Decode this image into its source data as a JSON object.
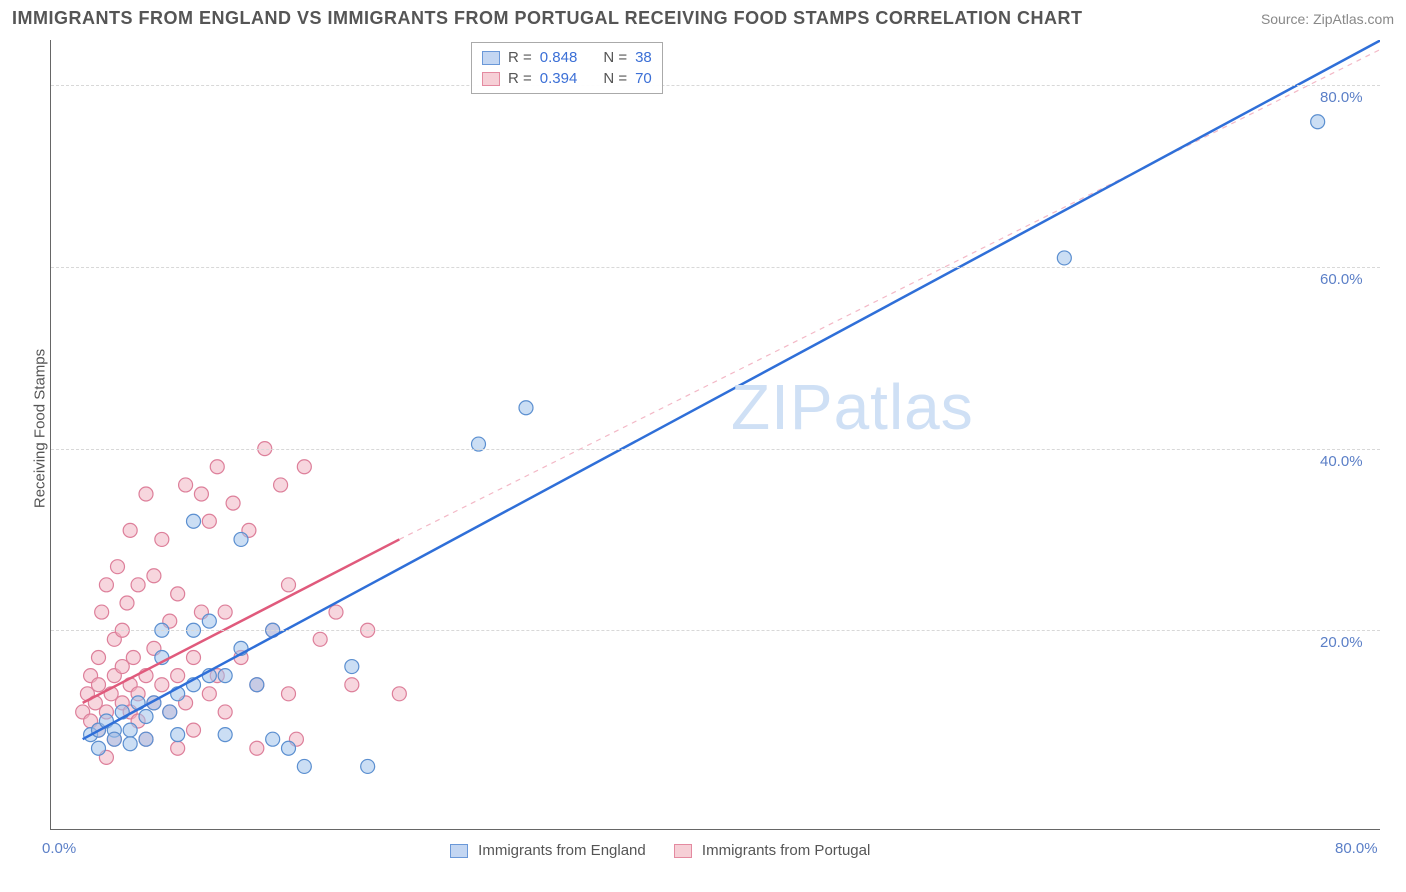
{
  "title": "IMMIGRANTS FROM ENGLAND VS IMMIGRANTS FROM PORTUGAL RECEIVING FOOD STAMPS CORRELATION CHART",
  "source": "Source: ZipAtlas.com",
  "watermark": "ZIPatlas",
  "y_axis_label": "Receiving Food Stamps",
  "axis": {
    "xlim": [
      -2,
      82
    ],
    "ylim": [
      -2,
      85
    ],
    "x_tick_label_min": "0.0%",
    "x_tick_label_max": "80.0%",
    "y_ticks": [
      20,
      40,
      60,
      80
    ],
    "y_tick_labels": [
      "20.0%",
      "40.0%",
      "60.0%",
      "80.0%"
    ],
    "x_minor_ticks": [
      0,
      10,
      20,
      30,
      40,
      50,
      60,
      70,
      80
    ],
    "grid_color": "#d8d8d8",
    "axis_color": "#666666",
    "tick_label_color": "#5b7fc7",
    "tick_fontsize": 15
  },
  "legend_top": {
    "rows": [
      {
        "swatch_fill": "#c3d6f2",
        "swatch_border": "#6a98d8",
        "r_label": "R =",
        "r_value": "0.848",
        "n_label": "N =",
        "n_value": "38"
      },
      {
        "swatch_fill": "#f6cfd6",
        "swatch_border": "#e48aa0",
        "r_label": "R =",
        "r_value": "0.394",
        "n_label": "N =",
        "n_value": "70"
      }
    ]
  },
  "legend_bottom": {
    "items": [
      {
        "swatch_fill": "#c3d6f2",
        "swatch_border": "#6a98d8",
        "label": "Immigrants from England"
      },
      {
        "swatch_fill": "#f6cfd6",
        "swatch_border": "#e48aa0",
        "label": "Immigrants from Portugal"
      }
    ]
  },
  "series": [
    {
      "name": "england",
      "type": "scatter",
      "marker_radius": 7,
      "marker_fill": "rgba(160,195,235,0.55)",
      "marker_stroke": "#5b8fd0",
      "regression": {
        "x1": 0,
        "y1": 8,
        "x2": 82,
        "y2": 85,
        "stroke": "#2f6fd8",
        "width": 2.5,
        "dash": ""
      },
      "regression_ext": null,
      "points": [
        [
          0.5,
          8.5
        ],
        [
          1,
          7
        ],
        [
          1,
          9
        ],
        [
          1.5,
          10
        ],
        [
          2,
          9
        ],
        [
          2,
          8
        ],
        [
          2.5,
          11
        ],
        [
          3,
          9
        ],
        [
          3,
          7.5
        ],
        [
          3.5,
          12
        ],
        [
          4,
          8
        ],
        [
          4,
          10.5
        ],
        [
          4.5,
          12
        ],
        [
          5,
          20
        ],
        [
          5,
          17
        ],
        [
          5.5,
          11
        ],
        [
          6,
          13
        ],
        [
          6,
          8.5
        ],
        [
          7,
          32
        ],
        [
          7,
          20
        ],
        [
          7,
          14
        ],
        [
          8,
          15
        ],
        [
          8,
          21
        ],
        [
          9,
          8.5
        ],
        [
          9,
          15
        ],
        [
          10,
          18
        ],
        [
          10,
          30
        ],
        [
          11,
          14
        ],
        [
          12,
          20
        ],
        [
          12,
          8
        ],
        [
          13,
          7
        ],
        [
          14,
          5
        ],
        [
          17,
          16
        ],
        [
          18,
          5
        ],
        [
          25,
          40.5
        ],
        [
          28,
          44.5
        ],
        [
          62,
          61
        ],
        [
          78,
          76
        ]
      ]
    },
    {
      "name": "portugal",
      "type": "scatter",
      "marker_radius": 7,
      "marker_fill": "rgba(240,180,195,0.55)",
      "marker_stroke": "#dd7f9a",
      "regression": {
        "x1": 0,
        "y1": 12,
        "x2": 20,
        "y2": 30,
        "stroke": "#e05a7c",
        "width": 2.5,
        "dash": ""
      },
      "regression_ext": {
        "x1": 20,
        "y1": 30,
        "x2": 82,
        "y2": 84,
        "stroke": "#f3b8c6",
        "width": 1.2,
        "dash": "5,5"
      },
      "points": [
        [
          0,
          11
        ],
        [
          0.3,
          13
        ],
        [
          0.5,
          10
        ],
        [
          0.5,
          15
        ],
        [
          0.8,
          12
        ],
        [
          1,
          14
        ],
        [
          1,
          17
        ],
        [
          1,
          9
        ],
        [
          1.2,
          22
        ],
        [
          1.5,
          25
        ],
        [
          1.5,
          11
        ],
        [
          1.5,
          6
        ],
        [
          1.8,
          13
        ],
        [
          2,
          15
        ],
        [
          2,
          19
        ],
        [
          2,
          8
        ],
        [
          2.2,
          27
        ],
        [
          2.5,
          12
        ],
        [
          2.5,
          16
        ],
        [
          2.5,
          20
        ],
        [
          2.8,
          23
        ],
        [
          3,
          11
        ],
        [
          3,
          14
        ],
        [
          3,
          31
        ],
        [
          3.2,
          17
        ],
        [
          3.5,
          10
        ],
        [
          3.5,
          13
        ],
        [
          3.5,
          25
        ],
        [
          4,
          35
        ],
        [
          4,
          15
        ],
        [
          4,
          8
        ],
        [
          4.5,
          12
        ],
        [
          4.5,
          18
        ],
        [
          4.5,
          26
        ],
        [
          5,
          14
        ],
        [
          5,
          30
        ],
        [
          5.5,
          11
        ],
        [
          5.5,
          21
        ],
        [
          6,
          7
        ],
        [
          6,
          15
        ],
        [
          6,
          24
        ],
        [
          6.5,
          12
        ],
        [
          6.5,
          36
        ],
        [
          7,
          17
        ],
        [
          7,
          9
        ],
        [
          7.5,
          35
        ],
        [
          7.5,
          22
        ],
        [
          8,
          13
        ],
        [
          8,
          32
        ],
        [
          8.5,
          38
        ],
        [
          8.5,
          15
        ],
        [
          9,
          11
        ],
        [
          9,
          22
        ],
        [
          9.5,
          34
        ],
        [
          10,
          17
        ],
        [
          10.5,
          31
        ],
        [
          11,
          14
        ],
        [
          11,
          7
        ],
        [
          11.5,
          40
        ],
        [
          12,
          20
        ],
        [
          12.5,
          36
        ],
        [
          13,
          13
        ],
        [
          13,
          25
        ],
        [
          13.5,
          8
        ],
        [
          14,
          38
        ],
        [
          15,
          19
        ],
        [
          16,
          22
        ],
        [
          17,
          14
        ],
        [
          18,
          20
        ],
        [
          20,
          13
        ]
      ]
    }
  ],
  "colors": {
    "background": "#ffffff",
    "title": "#555555",
    "watermark": "#cfe0f5"
  }
}
